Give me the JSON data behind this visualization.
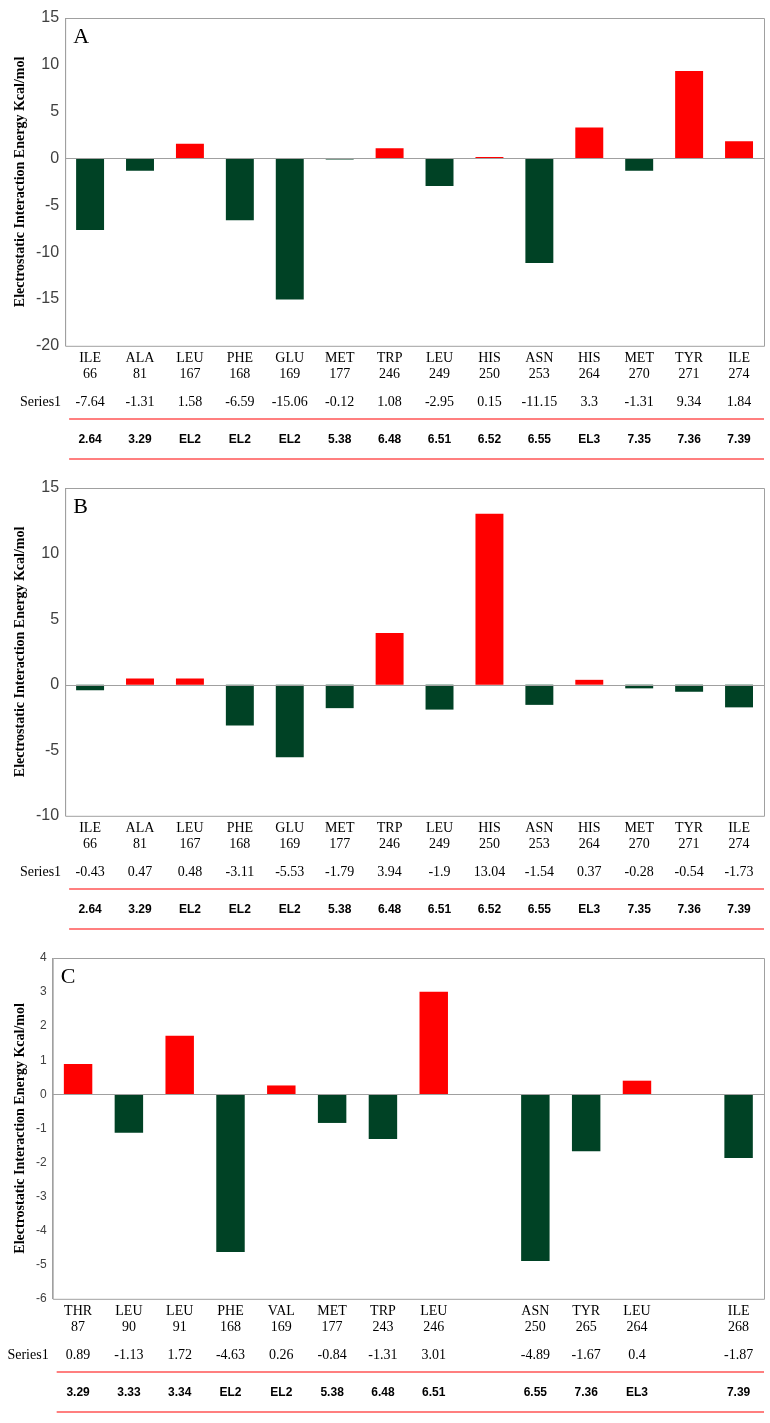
{
  "chart_data": [
    {
      "type": "bar",
      "title": "A",
      "ylabel": "Electrostatic Interaction Energy Kcal/mol",
      "categories": [
        "ILE 66",
        "ALA 81",
        "LEU 167",
        "PHE 168",
        "GLU 169",
        "MET 177",
        "TRP 246",
        "LEU 249",
        "HIS 250",
        "ASN 253",
        "HIS 264",
        "MET 270",
        "TYR 271",
        "ILE 274"
      ],
      "series": [
        {
          "name": "Series1",
          "colors": [
            "#004225",
            "#004225",
            "#ff0000",
            "#004225",
            "#004225",
            "#004225",
            "#ff0000",
            "#004225",
            "#ff0000",
            "#004225",
            "#ff0000",
            "#004225",
            "#ff0000",
            "#ff0000"
          ],
          "values": [
            -7.64,
            -1.31,
            1.58,
            -6.59,
            -15.06,
            -0.12,
            1.08,
            -2.95,
            0.15,
            -11.15,
            3.3,
            -1.31,
            9.34,
            1.84
          ]
        }
      ],
      "ylim": [
        -20,
        15
      ],
      "yticks": [
        -20,
        -15,
        -10,
        -5,
        0,
        5,
        10,
        15
      ],
      "data_labels": true,
      "legend": false,
      "annotations": [
        "2.64",
        "3.29",
        "EL2",
        "EL2",
        "EL2",
        "5.38",
        "6.48",
        "6.51",
        "6.52",
        "6.55",
        "EL3",
        "7.35",
        "7.36",
        "7.39"
      ]
    },
    {
      "type": "bar",
      "title": "B",
      "ylabel": "Electrostatic Interaction Energy Kcal/mol",
      "categories": [
        "ILE 66",
        "ALA 81",
        "LEU 167",
        "PHE 168",
        "GLU 169",
        "MET 177",
        "TRP 246",
        "LEU 249",
        "HIS 250",
        "ASN 253",
        "HIS 264",
        "MET 270",
        "TYR 271",
        "ILE 274"
      ],
      "series": [
        {
          "name": "Series1",
          "colors": [
            "#004225",
            "#ff0000",
            "#ff0000",
            "#004225",
            "#004225",
            "#004225",
            "#ff0000",
            "#004225",
            "#ff0000",
            "#004225",
            "#ff0000",
            "#004225",
            "#004225",
            "#004225"
          ],
          "values": [
            -0.43,
            0.47,
            0.48,
            -3.11,
            -5.53,
            -1.79,
            3.94,
            -1.9,
            13.04,
            -1.54,
            0.37,
            -0.28,
            -0.54,
            -1.73
          ]
        }
      ],
      "ylim": [
        -10,
        15
      ],
      "yticks": [
        -10,
        -5,
        0,
        5,
        10,
        15
      ],
      "data_labels": true,
      "legend": false,
      "annotations": [
        "2.64",
        "3.29",
        "EL2",
        "EL2",
        "EL2",
        "5.38",
        "6.48",
        "6.51",
        "6.52",
        "6.55",
        "EL3",
        "7.35",
        "7.36",
        "7.39"
      ]
    },
    {
      "type": "bar",
      "title": "C",
      "ylabel": "Electrostatic Interaction Energy Kcal/mol",
      "categories": [
        "THR 87",
        "LEU 90",
        "LEU 91",
        "PHE 168",
        "VAL 169",
        "MET 177",
        "TRP 243",
        "LEU 246",
        null,
        "ASN 250",
        "TYR 265",
        "LEU 264",
        null,
        "ILE 268"
      ],
      "series": [
        {
          "name": "Series1",
          "colors": [
            "#ff0000",
            "#004225",
            "#ff0000",
            "#004225",
            "#ff0000",
            "#004225",
            "#004225",
            "#ff0000",
            "#004225",
            "#004225",
            "#004225",
            "#ff0000",
            "#004225",
            "#004225"
          ],
          "values": [
            0.89,
            -1.13,
            1.72,
            -4.63,
            0.26,
            -0.84,
            -1.31,
            3.01,
            null,
            -4.89,
            -1.67,
            0.4,
            null,
            -1.87
          ]
        }
      ],
      "ylim": [
        -6,
        4
      ],
      "yticks": [
        -6,
        -5,
        -4,
        -3,
        -2,
        -1,
        0,
        1,
        2,
        3,
        4
      ],
      "data_labels": true,
      "legend": false,
      "annotations": [
        "3.29",
        "3.33",
        "3.34",
        "EL2",
        "EL2",
        "5.38",
        "6.48",
        "6.51",
        "6.55",
        "7.36",
        "EL3",
        "7.39"
      ]
    }
  ]
}
